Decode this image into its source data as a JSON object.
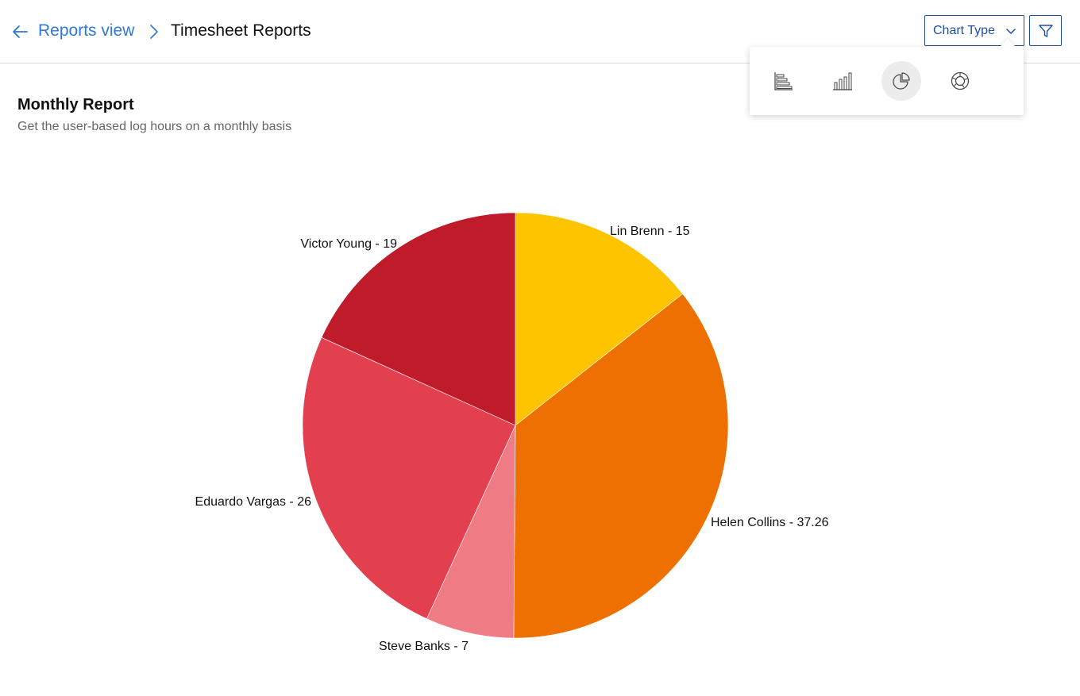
{
  "breadcrumb": {
    "parent": "Reports view",
    "current": "Timesheet Reports"
  },
  "toolbar": {
    "chart_type_label": "Chart Type"
  },
  "chart_type_menu": {
    "options": [
      "horizontal-bar",
      "vertical-bar",
      "pie",
      "donut"
    ],
    "selected": "pie"
  },
  "report": {
    "title": "Monthly Report",
    "subtitle": "Get the user-based log hours on a monthly basis"
  },
  "colors": {
    "accent": "#2f78d6",
    "button_border": "#1f4fa0"
  },
  "chart_data": {
    "type": "pie",
    "title": "",
    "slices": [
      {
        "name": "Lin Brenn",
        "value": 15,
        "label": "Lin Brenn - 15",
        "color": "#ffc400"
      },
      {
        "name": "Helen Collins",
        "value": 37.26,
        "label": "Helen Collins - 37.26",
        "color": "#ee7000"
      },
      {
        "name": "Steve Banks",
        "value": 7,
        "label": "Steve Banks - 7",
        "color": "#ef7b84"
      },
      {
        "name": "Eduardo Vargas",
        "value": 26,
        "label": "Eduardo Vargas - 26",
        "color": "#e3404f"
      },
      {
        "name": "Victor Young",
        "value": 19,
        "label": "Victor Young - 19",
        "color": "#c01b2a"
      }
    ],
    "start_angle": "12 o'clock",
    "direction": "clockwise",
    "legend": "none"
  }
}
